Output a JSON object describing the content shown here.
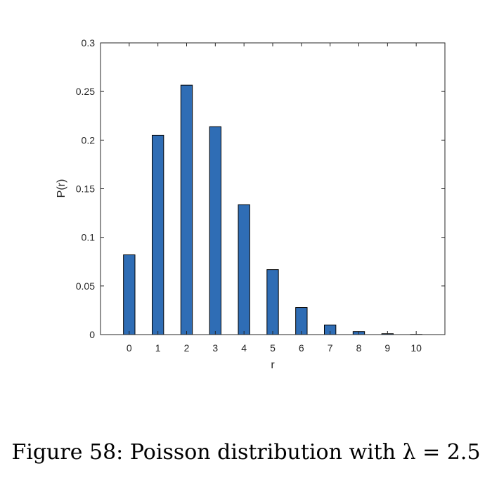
{
  "chart_data": {
    "type": "bar",
    "categories": [
      "0",
      "1",
      "2",
      "3",
      "4",
      "5",
      "6",
      "7",
      "8",
      "9",
      "10"
    ],
    "values": [
      0.082,
      0.205,
      0.2565,
      0.2138,
      0.1336,
      0.0668,
      0.0278,
      0.0099,
      0.0031,
      0.0009,
      0.0002
    ],
    "xlabel": "r",
    "ylabel": "P(r)",
    "ylim": [
      0,
      0.3
    ],
    "yticks": [
      "0",
      "0.05",
      "0.1",
      "0.15",
      "0.2",
      "0.25",
      "0.3"
    ],
    "ytick_values": [
      0,
      0.05,
      0.1,
      0.15,
      0.2,
      0.25,
      0.3
    ],
    "bar_color": "#2f6db5",
    "grid": false
  },
  "caption": "Figure 58: Poisson distribution with λ = 2.5"
}
